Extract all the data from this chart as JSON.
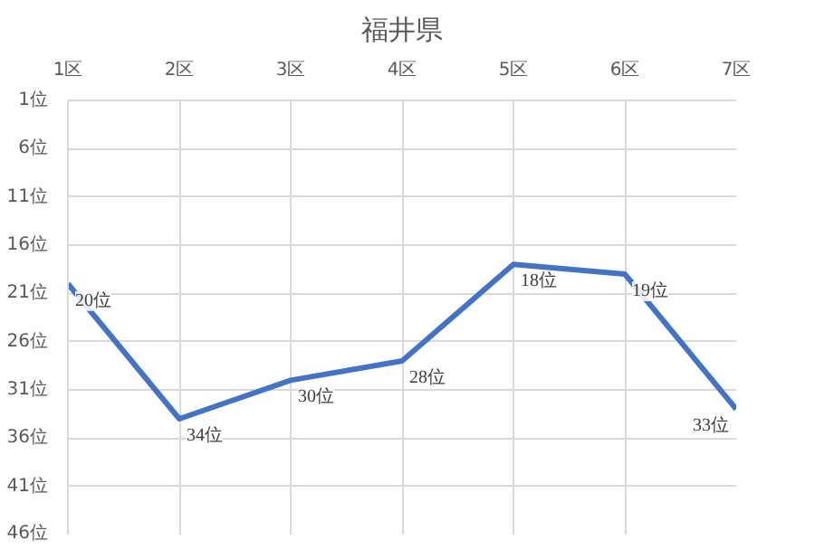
{
  "chart_data": {
    "type": "line",
    "title": "福井県",
    "categories": [
      "1区",
      "2区",
      "3区",
      "4区",
      "5区",
      "6区",
      "7区"
    ],
    "series": [
      {
        "color": "#4472c4",
        "values": [
          20,
          34,
          30,
          28,
          18,
          19,
          33
        ],
        "value_labels": [
          "20位",
          "34位",
          "30位",
          "28位",
          "18位",
          "19位",
          "33位"
        ]
      }
    ],
    "ylim": [
      46,
      1
    ],
    "yticks": [
      {
        "value": 1,
        "label": "1位"
      },
      {
        "value": 6,
        "label": "6位"
      },
      {
        "value": 11,
        "label": "11位"
      },
      {
        "value": 16,
        "label": "16位"
      },
      {
        "value": 21,
        "label": "21位"
      },
      {
        "value": 26,
        "label": "26位"
      },
      {
        "value": 31,
        "label": "31位"
      },
      {
        "value": 36,
        "label": "36位"
      },
      {
        "value": 41,
        "label": "41位"
      },
      {
        "value": 46,
        "label": "46位"
      }
    ],
    "grid": true,
    "marker": "none",
    "line_style": "solid"
  }
}
